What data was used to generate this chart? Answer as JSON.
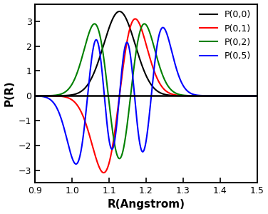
{
  "title": "",
  "xlabel": "R(Angstrom)",
  "ylabel": "P(R)",
  "xlim": [
    0.9,
    1.5
  ],
  "ylim": [
    -3.5,
    3.7
  ],
  "yticks": [
    -3.0,
    -2.0,
    -1.0,
    0.0,
    1.0,
    2.0,
    3.0
  ],
  "xticks": [
    0.9,
    1.0,
    1.1,
    1.2,
    1.3,
    1.4,
    1.5
  ],
  "colors": [
    "black",
    "red",
    "green",
    "blue"
  ],
  "labels": [
    "P(0,0)",
    "P(0,1)",
    "P(0,2)",
    "P(0,5)"
  ],
  "ns": [
    0,
    1,
    2,
    5
  ],
  "R0": 1.128,
  "alpha": 550.0,
  "scales": [
    3.4,
    3.1,
    2.9,
    2.75
  ],
  "background": "#ffffff"
}
